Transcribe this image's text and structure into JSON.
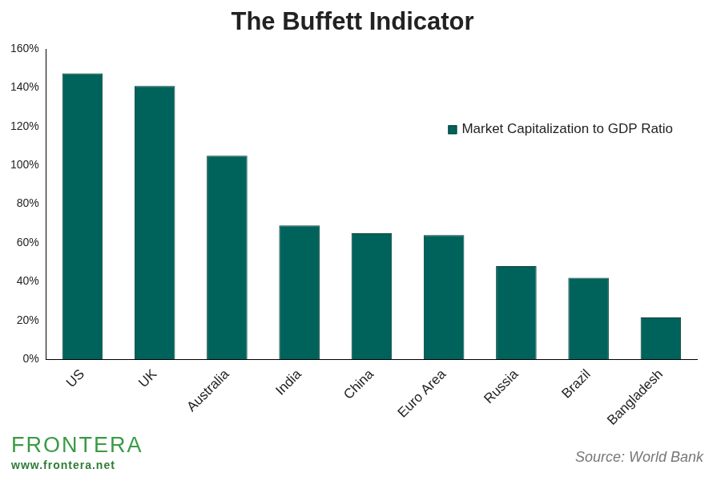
{
  "chart_data": {
    "type": "bar",
    "title": "The Buffett Indicator",
    "categories": [
      "US",
      "UK",
      "Australia",
      "India",
      "China",
      "Euro Area",
      "Russia",
      "Brazil",
      "Bangladesh"
    ],
    "series": [
      {
        "name": "Market Capitalization to GDP Ratio",
        "color": "#00635b",
        "values": [
          147.5,
          141,
          105,
          69,
          65,
          64,
          48,
          42,
          21.5
        ]
      }
    ],
    "ylim": [
      0,
      160
    ],
    "yticks": [
      {
        "value": 0,
        "label": "0%"
      },
      {
        "value": 20,
        "label": "20%"
      },
      {
        "value": 40,
        "label": "40%"
      },
      {
        "value": 60,
        "label": "60%"
      },
      {
        "value": 80,
        "label": "80%"
      },
      {
        "value": 100,
        "label": "100%"
      },
      {
        "value": 120,
        "label": "120%"
      },
      {
        "value": 140,
        "label": "140%"
      },
      {
        "value": 160,
        "label": "160%"
      }
    ],
    "grid": false,
    "legend": "upper right",
    "annotations": [
      "FRONTERA",
      "www.frontera.net",
      "Source: World Bank"
    ]
  }
}
